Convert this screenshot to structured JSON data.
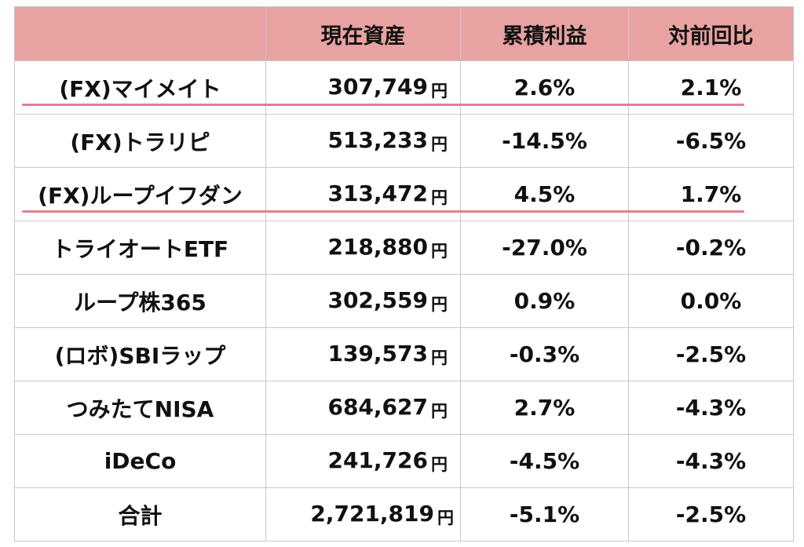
{
  "headers": [
    "",
    "現在資産",
    "累積利益",
    "対前回比"
  ],
  "currency_unit": "円",
  "rows": [
    {
      "name": "(FX)マイメイト",
      "asset": "307,749",
      "cumulative": "2.6%",
      "change": "2.1%",
      "underlined": true
    },
    {
      "name": "(FX)トラリピ",
      "asset": "513,233",
      "cumulative": "-14.5%",
      "change": "-6.5%",
      "underlined": false
    },
    {
      "name": "(FX)ループイフダン",
      "asset": "313,472",
      "cumulative": "4.5%",
      "change": "1.7%",
      "underlined": true
    },
    {
      "name": "トライオートETF",
      "asset": "218,880",
      "cumulative": "-27.0%",
      "change": "-0.2%",
      "underlined": false
    },
    {
      "name": "ループ株365",
      "asset": "302,559",
      "cumulative": "0.9%",
      "change": "0.0%",
      "underlined": false
    },
    {
      "name": "(ロボ)SBIラップ",
      "asset": "139,573",
      "cumulative": "-0.3%",
      "change": "-2.5%",
      "underlined": false
    },
    {
      "name": "つみたてNISA",
      "asset": "684,627",
      "cumulative": "2.7%",
      "change": "-4.3%",
      "underlined": false
    },
    {
      "name": "iDeCo",
      "asset": "241,726",
      "cumulative": "-4.5%",
      "change": "-4.3%",
      "underlined": false
    },
    {
      "name": "合計",
      "asset": "2,721,819",
      "cumulative": "-5.1%",
      "change": "-2.5%",
      "underlined": false
    }
  ],
  "colors": {
    "header_bg": "#e8a2a2",
    "underline": "#e07f93",
    "border": "#c8c8c8"
  }
}
